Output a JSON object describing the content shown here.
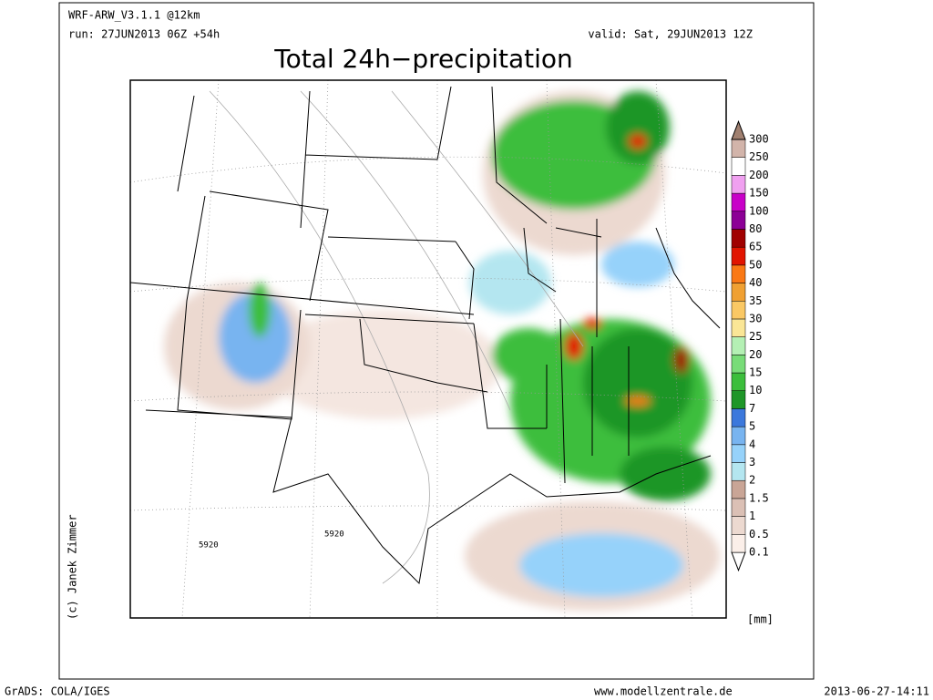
{
  "header": {
    "model": "WRF-ARW_V3.1.1 @12km",
    "run": "run: 27JUN2013 06Z +54h",
    "valid": "valid: Sat, 29JUN2013 12Z"
  },
  "title": "Total 24h−precipitation",
  "map": {
    "credit": "(c) Janek Zimmer",
    "contour_labels": [
      "5920",
      "5920"
    ]
  },
  "legend": {
    "labels": [
      "0.1",
      "0.5",
      "1",
      "1.5",
      "2",
      "3",
      "4",
      "5",
      "7",
      "10",
      "15",
      "20",
      "25",
      "30",
      "35",
      "40",
      "50",
      "65",
      "80",
      "100",
      "150",
      "200",
      "250",
      "300"
    ],
    "colors": [
      "#ffffff",
      "#fbefe9",
      "#ecd9d0",
      "#dbc0b5",
      "#c9a596",
      "#b4e6f0",
      "#96d2fa",
      "#78b4f0",
      "#3c78dc",
      "#1e9628",
      "#3cbe3c",
      "#78dc78",
      "#b4f0b4",
      "#fae696",
      "#fac864",
      "#f0a032",
      "#fa7814",
      "#e11400",
      "#a00000",
      "#8c0096",
      "#c800c8",
      "#f0a0f0",
      "#ffffff",
      "#d2b4aa",
      "#a08070"
    ],
    "unit": "[mm]"
  },
  "footer": {
    "left": "GrADS: COLA/IGES",
    "center": "www.modellzentrale.de",
    "right": "2013-06-27-14:11"
  }
}
